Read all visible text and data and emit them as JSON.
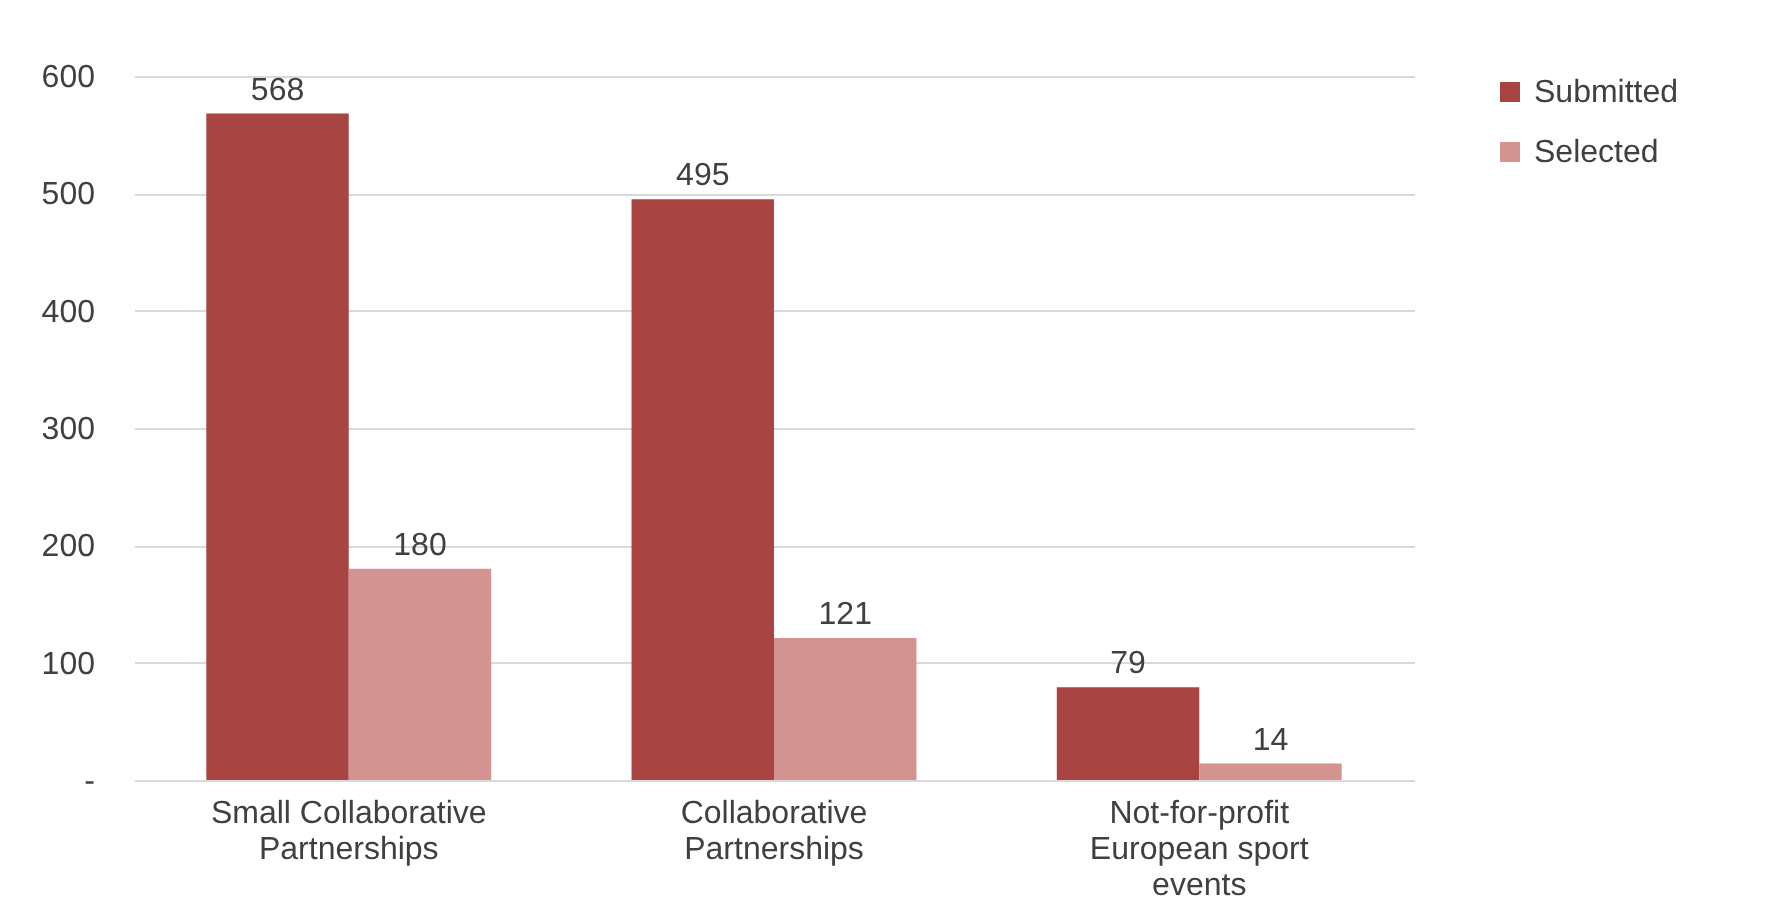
{
  "chart_data": {
    "type": "bar",
    "categories": [
      "Small Collaborative Partnerships",
      "Collaborative Partnerships",
      "Not-for-profit European sport events"
    ],
    "series": [
      {
        "name": "Submitted",
        "color": "#a84543",
        "values": [
          568,
          495,
          79
        ]
      },
      {
        "name": "Selected",
        "color": "#d39391",
        "values": [
          180,
          121,
          14
        ]
      }
    ],
    "ylim": [
      0,
      600
    ],
    "yticks": [
      {
        "value": 0,
        "label": "-"
      },
      100,
      200,
      300,
      400,
      500,
      600
    ],
    "grid": "y",
    "legend": "right",
    "data_labels": true
  }
}
